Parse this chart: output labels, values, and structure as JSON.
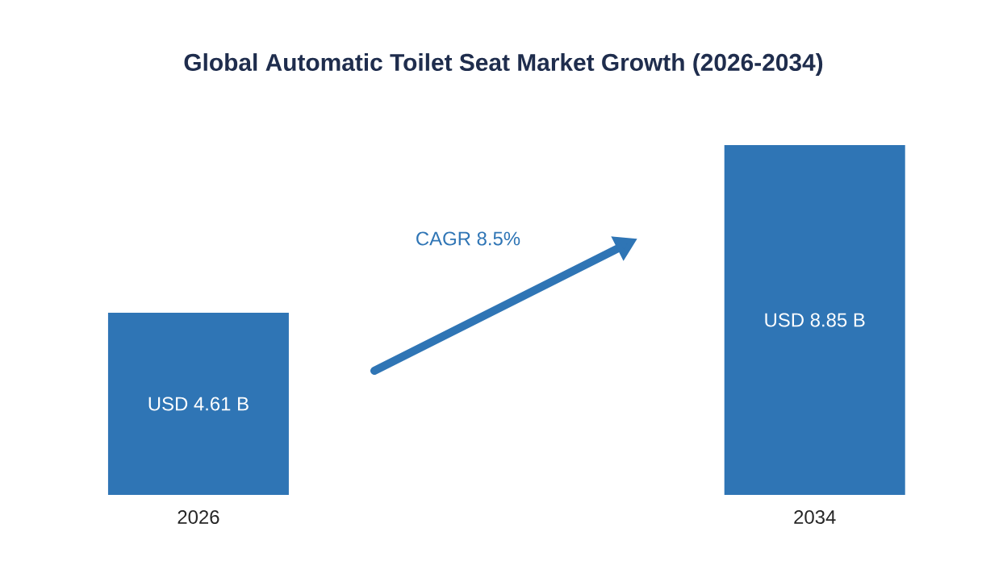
{
  "chart_data": {
    "type": "bar",
    "title": "Global Automatic Toilet Seat Market Growth (2026-2034)",
    "categories": [
      "2026",
      "2034"
    ],
    "values": [
      4.61,
      8.85
    ],
    "value_labels": [
      "USD 4.61 B",
      "USD 8.85 B"
    ],
    "color": "#2f75b5",
    "annotations": [
      "CAGR 8.5%"
    ]
  }
}
